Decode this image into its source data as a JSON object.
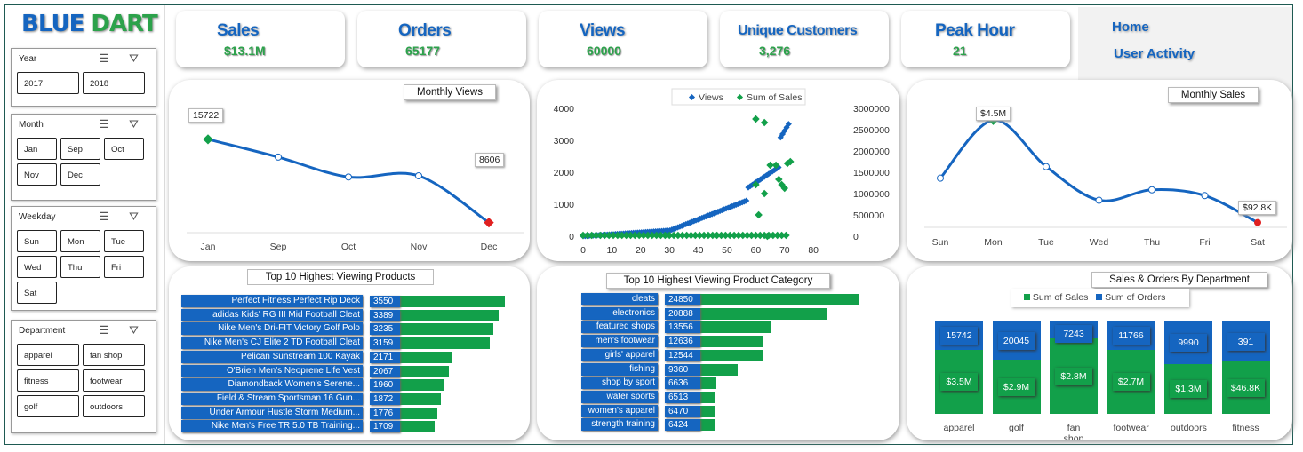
{
  "brand": {
    "part1": "BLUE",
    "part2": "DART"
  },
  "slicers": [
    {
      "title": "Year",
      "items": [
        "2017",
        "2018"
      ]
    },
    {
      "title": "Month",
      "items": [
        "Jan",
        "Sep",
        "Oct",
        "Nov",
        "Dec"
      ]
    },
    {
      "title": "Weekday",
      "items": [
        "Sun",
        "Mon",
        "Tue",
        "Wed",
        "Thu",
        "Fri",
        "Sat"
      ]
    },
    {
      "title": "Department",
      "items": [
        "apparel",
        "fan shop",
        "fitness",
        "footwear",
        "golf",
        "outdoors"
      ]
    }
  ],
  "kpis": [
    {
      "title": "Sales",
      "value": "$13.1M"
    },
    {
      "title": "Orders",
      "value": "65177"
    },
    {
      "title": "Views",
      "value": "60000"
    },
    {
      "title": "Unique Customers",
      "value": "3,276"
    },
    {
      "title": "Peak Hour",
      "value": "21"
    }
  ],
  "nav": {
    "home": "Home",
    "activity": "User Activity"
  },
  "colors": {
    "blue": "#1565c0",
    "green": "#12a04a",
    "red": "#e02020"
  },
  "monthly_views": {
    "title": "Monthly Views",
    "categories": [
      "Jan",
      "Sep",
      "Oct",
      "Nov",
      "Dec"
    ],
    "values": [
      15722,
      14200,
      12500,
      12600,
      8606
    ],
    "first_label": "15722",
    "last_label": "8606"
  },
  "scatter": {
    "legend": [
      "Views",
      "Sum of Sales"
    ],
    "left_ticks": [
      "4000",
      "3000",
      "2000",
      "1000",
      "0"
    ],
    "right_ticks": [
      "3000000",
      "2500000",
      "2000000",
      "1500000",
      "1000000",
      "500000",
      "0"
    ],
    "x_ticks": [
      "0",
      "10",
      "20",
      "30",
      "40",
      "50",
      "60",
      "70",
      "80"
    ]
  },
  "monthly_sales": {
    "title": "Monthly Sales",
    "categories": [
      "Sun",
      "Mon",
      "Tue",
      "Wed",
      "Thu",
      "Fri",
      "Sat"
    ],
    "values": [
      2000000,
      4500000,
      2500000,
      1050000,
      1500000,
      1250000,
      92800
    ],
    "peak_label": "$4.5M",
    "last_label": "$92.8K"
  },
  "top_products": {
    "title": "Top 10 Highest  Viewing Products",
    "rows": [
      {
        "name": "Perfect Fitness Perfect Rip Deck",
        "value": 3550
      },
      {
        "name": "adidas Kids' RG III Mid Football Cleat",
        "value": 3389
      },
      {
        "name": "Nike Men's Dri-FIT Victory Golf Polo",
        "value": 3235
      },
      {
        "name": "Nike Men's CJ Elite 2 TD Football Cleat",
        "value": 3159
      },
      {
        "name": "Pelican Sunstream 100 Kayak",
        "value": 2171
      },
      {
        "name": "O'Brien Men's Neoprene Life Vest",
        "value": 2067
      },
      {
        "name": "Diamondback Women's Serene...",
        "value": 1960
      },
      {
        "name": "Field & Stream Sportsman 16 Gun...",
        "value": 1872
      },
      {
        "name": "Under Armour Hustle Storm Medium...",
        "value": 1776
      },
      {
        "name": "Nike Men's Free TR 5.0 TB Training...",
        "value": 1709
      }
    ]
  },
  "top_categories": {
    "title": "Top 10 Highest  Viewing Product Category",
    "rows": [
      {
        "name": "cleats",
        "value": 24850
      },
      {
        "name": "electronics",
        "value": 20888
      },
      {
        "name": "featured shops",
        "value": 13556
      },
      {
        "name": "men's footwear",
        "value": 12636
      },
      {
        "name": "girls' apparel",
        "value": 12544
      },
      {
        "name": "fishing",
        "value": 9360
      },
      {
        "name": "shop by sport",
        "value": 6636
      },
      {
        "name": "water sports",
        "value": 6513
      },
      {
        "name": "women's apparel",
        "value": 6470
      },
      {
        "name": "strength training",
        "value": 6424
      }
    ]
  },
  "departments": {
    "title": "Sales & Orders By Department",
    "legend": [
      "Sum of Sales",
      "Sum of Orders"
    ],
    "items": [
      {
        "name": "apparel",
        "sales_label": "$3.5M",
        "orders": "15742",
        "sales_frac": 0.69
      },
      {
        "name": "golf",
        "sales_label": "$2.9M",
        "orders": "20045",
        "sales_frac": 0.59
      },
      {
        "name": "fan shop",
        "sales_label": "$2.8M",
        "orders": "7243",
        "sales_frac": 0.82
      },
      {
        "name": "footwear",
        "sales_label": "$2.7M",
        "orders": "11766",
        "sales_frac": 0.69
      },
      {
        "name": "outdoors",
        "sales_label": "$1.3M",
        "orders": "9990",
        "sales_frac": 0.54
      },
      {
        "name": "fitness",
        "sales_label": "$46.8K",
        "orders": "391",
        "sales_frac": 0.57
      }
    ]
  }
}
